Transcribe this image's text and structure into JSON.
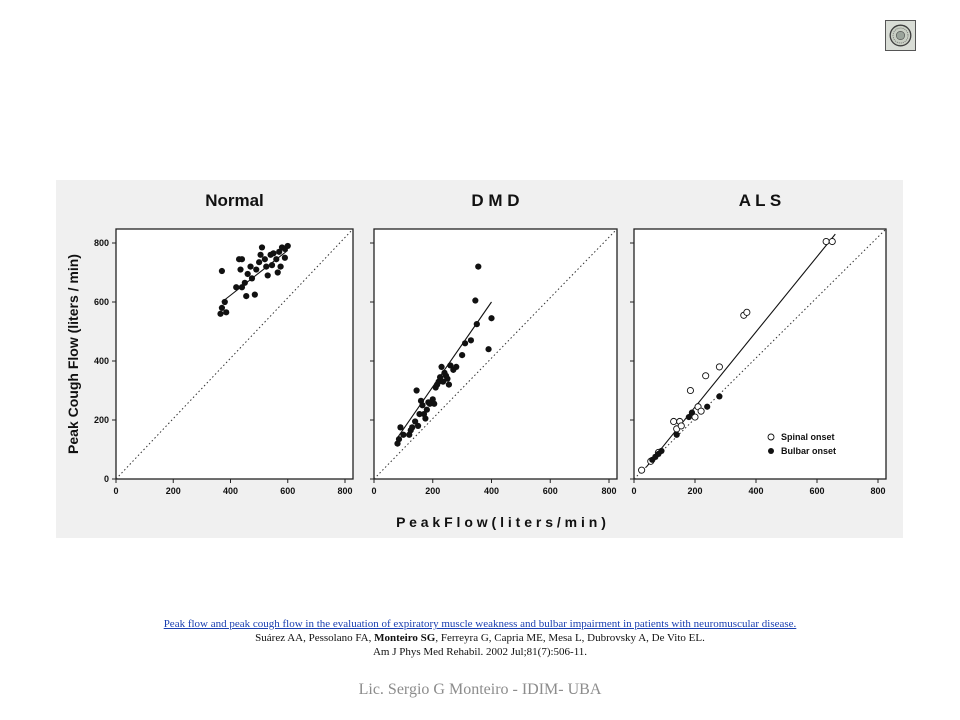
{
  "logo": {
    "icon": "seal-icon"
  },
  "figure": {
    "panels": [
      {
        "title": "Normal",
        "x_ticks": [
          "0",
          "200",
          "400",
          "600",
          "800"
        ],
        "y_ticks": [
          "0",
          "200",
          "400",
          "600",
          "800"
        ],
        "points": [
          [
            370,
            705
          ],
          [
            365,
            560
          ],
          [
            370,
            580
          ],
          [
            380,
            600
          ],
          [
            385,
            565
          ],
          [
            420,
            650
          ],
          [
            430,
            745
          ],
          [
            440,
            745
          ],
          [
            435,
            710
          ],
          [
            440,
            650
          ],
          [
            450,
            665
          ],
          [
            455,
            620
          ],
          [
            460,
            695
          ],
          [
            470,
            720
          ],
          [
            475,
            680
          ],
          [
            485,
            625
          ],
          [
            490,
            710
          ],
          [
            500,
            735
          ],
          [
            505,
            760
          ],
          [
            510,
            785
          ],
          [
            520,
            745
          ],
          [
            525,
            720
          ],
          [
            530,
            690
          ],
          [
            540,
            760
          ],
          [
            545,
            725
          ],
          [
            550,
            765
          ],
          [
            560,
            745
          ],
          [
            565,
            700
          ],
          [
            570,
            770
          ],
          [
            575,
            720
          ],
          [
            580,
            785
          ],
          [
            590,
            780
          ],
          [
            600,
            790
          ],
          [
            590,
            750
          ]
        ],
        "fit": [
          [
            370,
            600
          ],
          [
            600,
            775
          ]
        ]
      },
      {
        "title": "D M D",
        "x_ticks": [
          "0",
          "200",
          "400",
          "600",
          "800"
        ],
        "y_ticks": [],
        "points": [
          [
            80,
            120
          ],
          [
            85,
            135
          ],
          [
            90,
            175
          ],
          [
            100,
            150
          ],
          [
            120,
            150
          ],
          [
            125,
            165
          ],
          [
            130,
            175
          ],
          [
            140,
            195
          ],
          [
            145,
            300
          ],
          [
            150,
            180
          ],
          [
            155,
            220
          ],
          [
            160,
            265
          ],
          [
            165,
            250
          ],
          [
            170,
            220
          ],
          [
            175,
            205
          ],
          [
            180,
            235
          ],
          [
            185,
            260
          ],
          [
            190,
            255
          ],
          [
            200,
            270
          ],
          [
            210,
            310
          ],
          [
            215,
            320
          ],
          [
            220,
            330
          ],
          [
            225,
            345
          ],
          [
            230,
            380
          ],
          [
            235,
            330
          ],
          [
            240,
            360
          ],
          [
            245,
            350
          ],
          [
            250,
            340
          ],
          [
            255,
            320
          ],
          [
            260,
            385
          ],
          [
            270,
            370
          ],
          [
            280,
            380
          ],
          [
            300,
            420
          ],
          [
            310,
            460
          ],
          [
            330,
            470
          ],
          [
            350,
            525
          ],
          [
            345,
            605
          ],
          [
            355,
            720
          ],
          [
            390,
            440
          ],
          [
            400,
            545
          ],
          [
            205,
            255
          ]
        ],
        "fit": [
          [
            80,
            140
          ],
          [
            400,
            600
          ]
        ]
      },
      {
        "title": "A L S",
        "x_ticks": [
          "0",
          "200",
          "400",
          "600",
          "800"
        ],
        "y_ticks": [],
        "points_spinal": [
          [
            25,
            30
          ],
          [
            55,
            60
          ],
          [
            80,
            90
          ],
          [
            130,
            195
          ],
          [
            140,
            170
          ],
          [
            150,
            195
          ],
          [
            155,
            180
          ],
          [
            185,
            300
          ],
          [
            200,
            210
          ],
          [
            210,
            245
          ],
          [
            220,
            230
          ],
          [
            235,
            350
          ],
          [
            280,
            380
          ],
          [
            360,
            555
          ],
          [
            370,
            565
          ],
          [
            630,
            805
          ],
          [
            650,
            805
          ]
        ],
        "points_bulbar": [
          [
            60,
            65
          ],
          [
            70,
            75
          ],
          [
            80,
            85
          ],
          [
            90,
            95
          ],
          [
            140,
            150
          ],
          [
            180,
            210
          ],
          [
            190,
            225
          ],
          [
            240,
            245
          ],
          [
            280,
            280
          ]
        ],
        "fit": [
          [
            40,
            40
          ],
          [
            660,
            830
          ]
        ],
        "legend": {
          "spinal": "Spinal onset",
          "bulbar": "Bulbar onset"
        }
      }
    ],
    "y_axis_label": "Peak Cough Flow (liters / min)",
    "x_axis_label": "P e a k     F l o w  ( l i t e r s / m i n )"
  },
  "citation": {
    "title_link": "Peak flow and peak cough flow in the evaluation of expiratory muscle weakness and bulbar impairment in patients with neuromuscular disease.",
    "authors_before": "Suárez AA, Pessolano FA, ",
    "authors_bold": "Monteiro SG",
    "authors_after": ", Ferreyra G, Capria ME, Mesa L, Dubrovsky A, De Vito EL.",
    "journal": "Am J Phys Med Rehabil. 2002 Jul;81(7):506-11."
  },
  "footer": "Lic. Sergio G Monteiro - IDIM- UBA"
}
